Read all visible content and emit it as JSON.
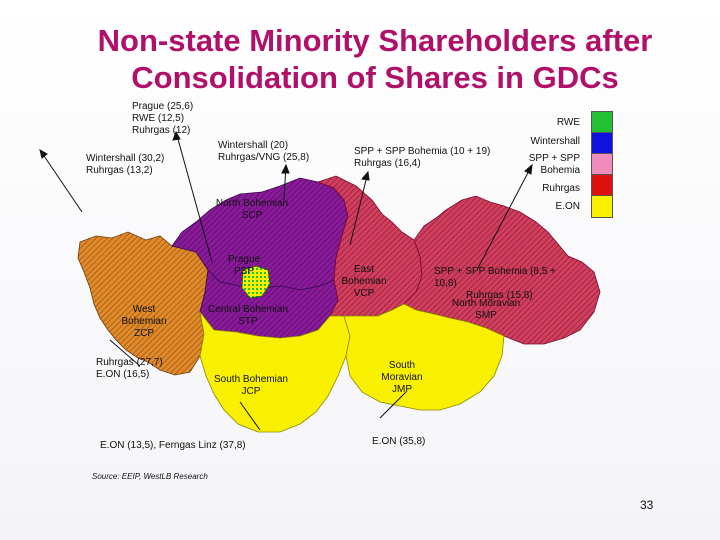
{
  "title": "Non-state Minority Shareholders after Consolidation of Shares in GDCs",
  "notes": {
    "prague": "Prague (25,6)\nRWE (12,5)\nRuhrgas (12)",
    "west": "Wintershall (30,2)\nRuhrgas (13,2)",
    "north_central": "Wintershall (20)\nRuhrgas/VNG (25,8)",
    "east": "SPP + SPP Bohemia (10 + 19)\nRuhrgas (16,4)",
    "southwest": "Ruhrgas (27,7)\nE.ON (16,5)",
    "south_bohemia": "E.ON (13,5), Ferngas Linz (37,8)",
    "south_moravia": "E.ON (35,8)"
  },
  "regions": {
    "north_bohemian": "North Bohemian\nSCP",
    "prague": "Prague\nPSP",
    "central_bohemian": "Central Bohemian\nSTP",
    "west_bohemian": "West\nBohemian\nZCP",
    "south_bohemian": "South Bohemian\nJCP",
    "east_bohemian": "East\nBohemian\nVCP",
    "south_moravian": "South\nMoravian\nJMP",
    "north_moravian": "North Moravian\nSMP",
    "north_moravian_note": "SPP + SPP Bohemia (8,5 +\n10,8)",
    "north_moravian_note2": "Ruhrgas (15,8)"
  },
  "legend": [
    {
      "label": "RWE",
      "color": "#22c033"
    },
    {
      "label": "Wintershall",
      "color": "#1010e0"
    },
    {
      "label": "SPP + SPP\nBohemia",
      "color": "#f08cbc"
    },
    {
      "label": "Ruhrgas",
      "color": "#e01010"
    },
    {
      "label": "E.ON",
      "color": "#f8f000"
    }
  ],
  "source": "Source: EEIP, WestLB Research",
  "page_number": "33"
}
